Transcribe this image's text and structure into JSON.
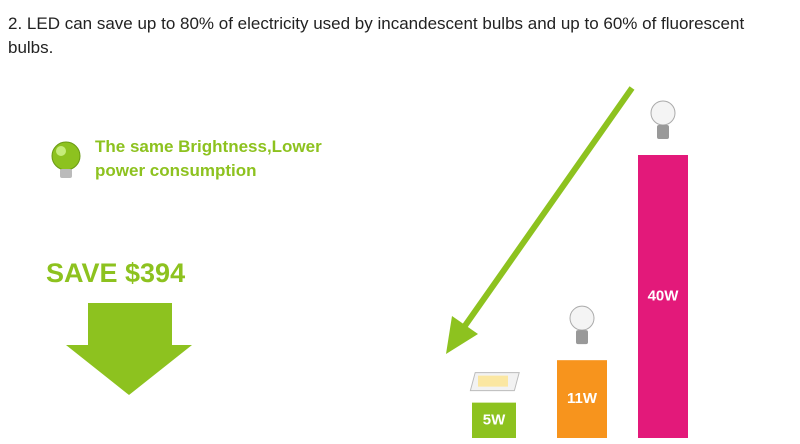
{
  "chart_data": {
    "type": "bar",
    "title": "2. LED can save up to 80% of electricity used by incandescent bulbs and up to 60% of fluorescent bulbs.",
    "callout": "The same Brightness,Lower power consumption",
    "savings": "SAVE $394",
    "values": [
      5,
      11,
      40
    ],
    "value_labels": [
      "5W",
      "11W",
      "40W"
    ],
    "colors": [
      "#8dc21f",
      "#f7941d",
      "#e3197a"
    ]
  }
}
